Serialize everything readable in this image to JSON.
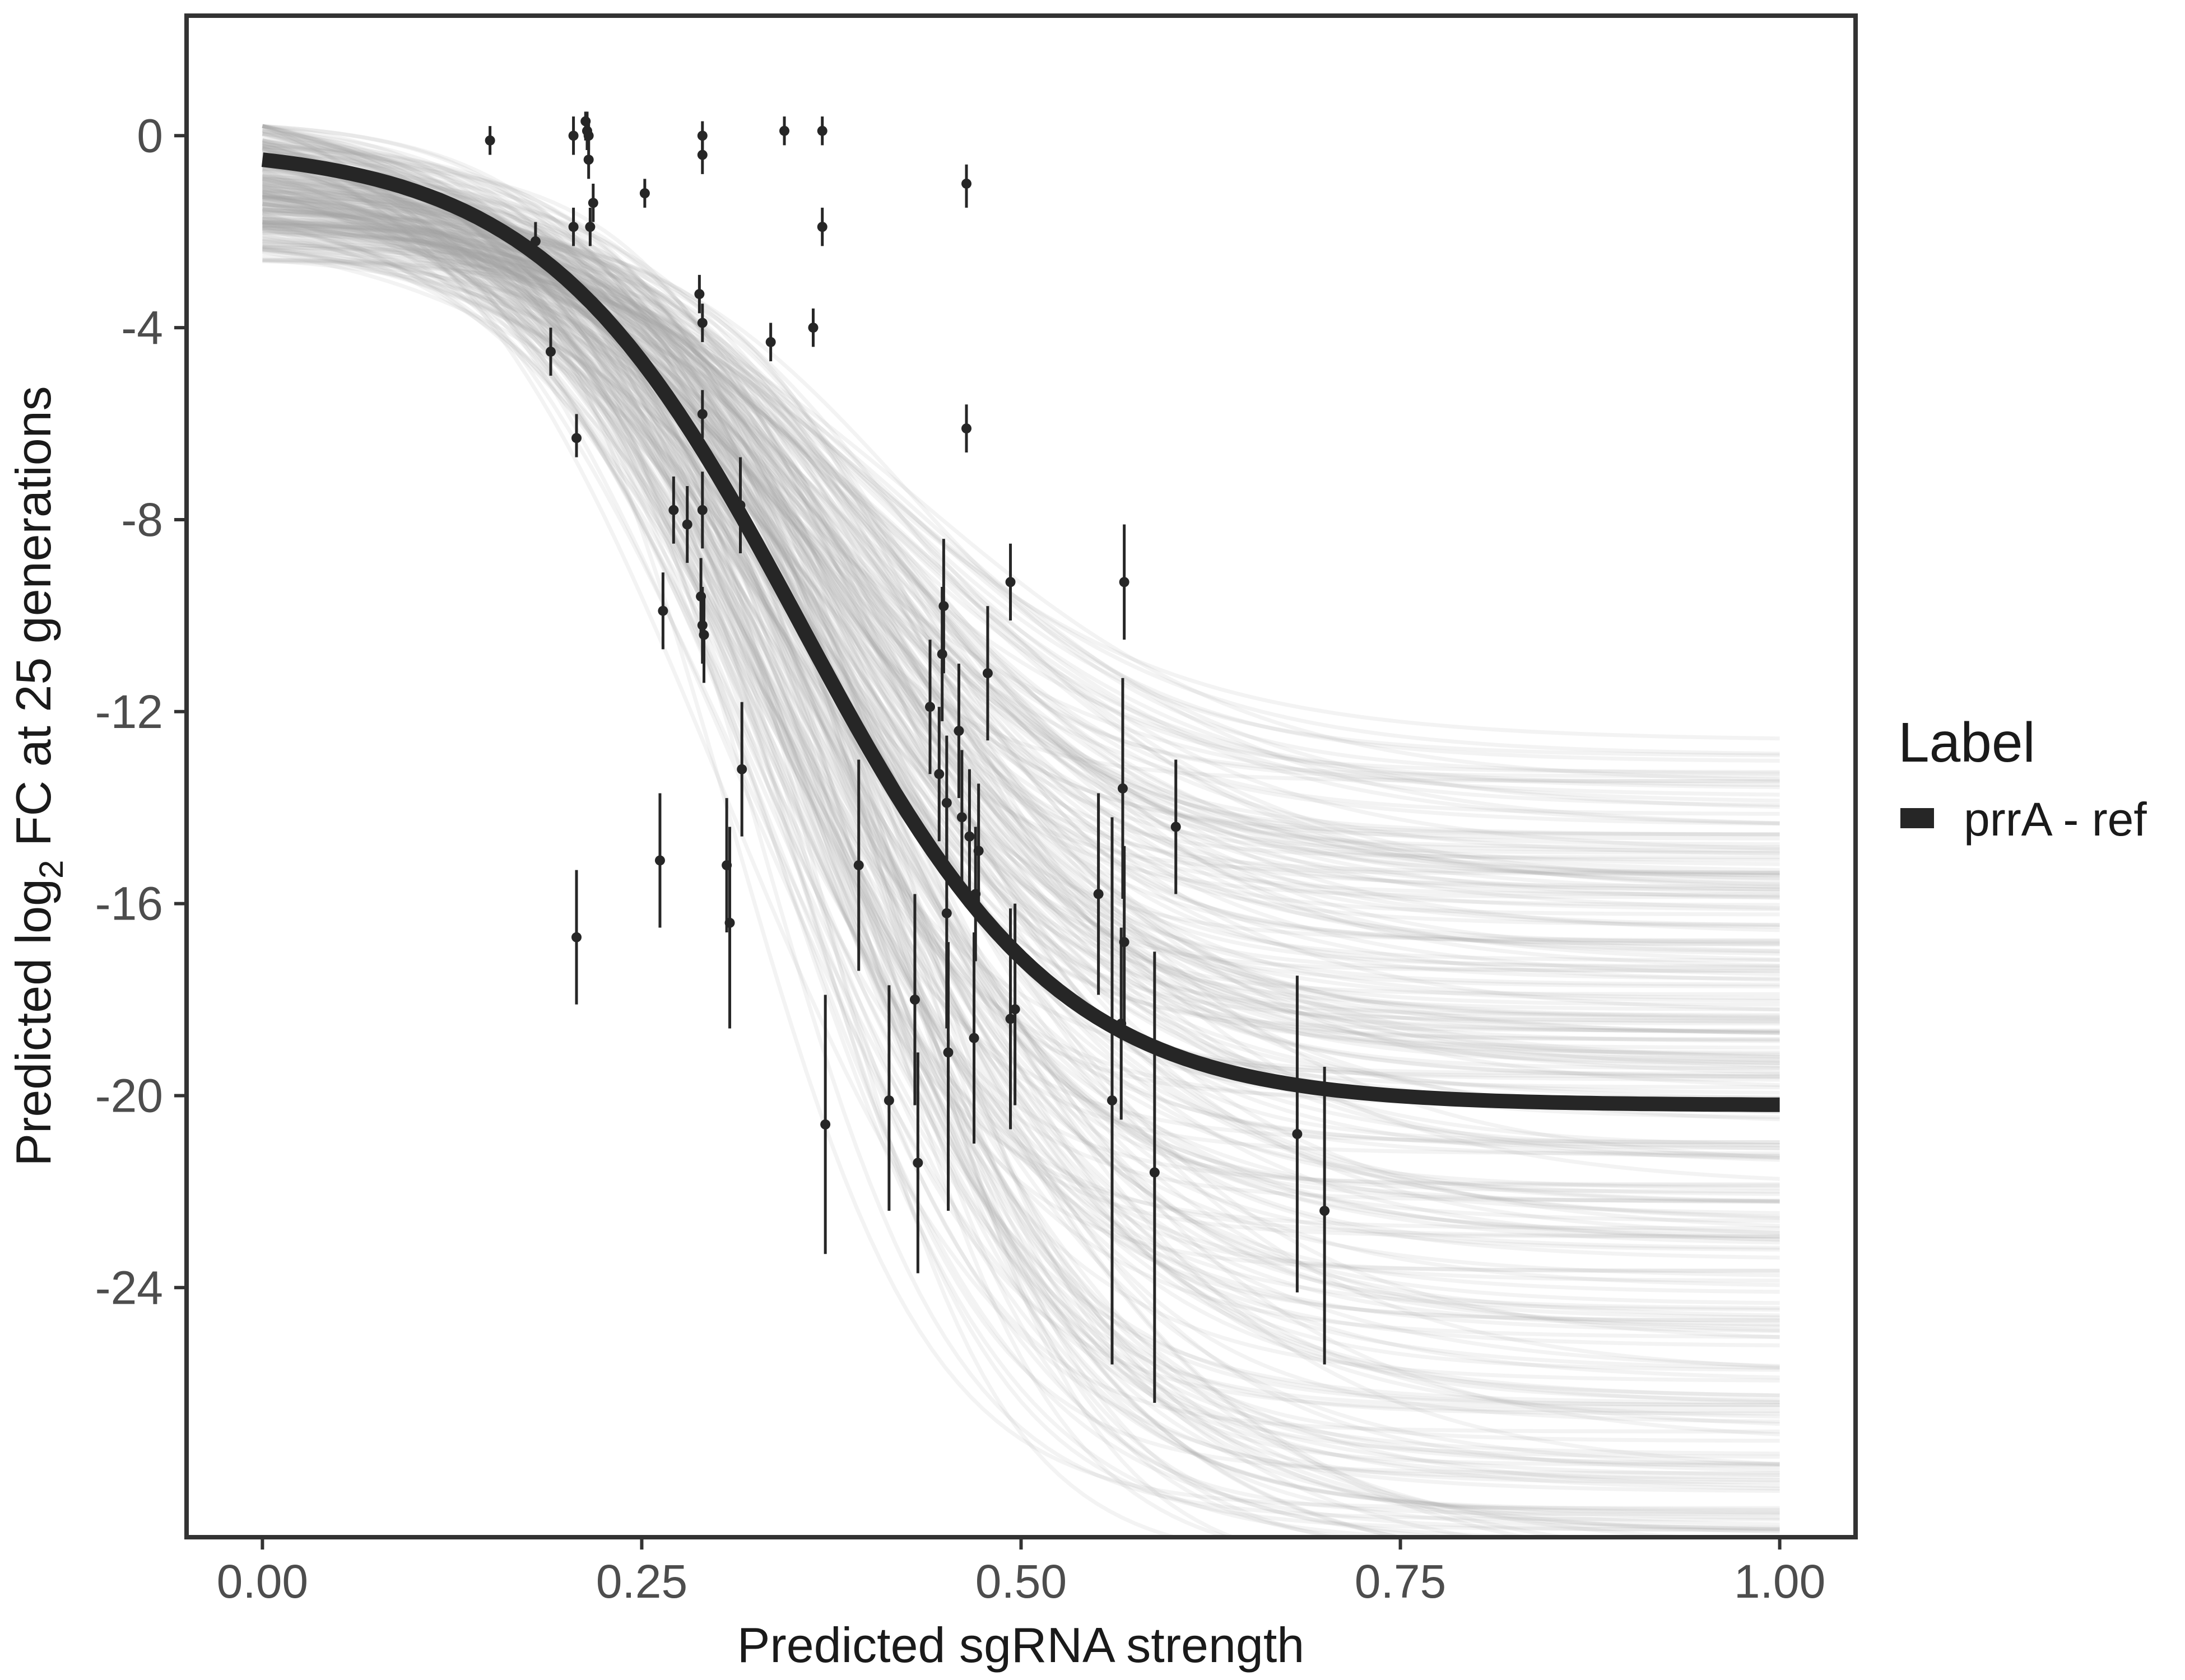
{
  "chart_data": {
    "type": "line",
    "title": "",
    "xlabel": "Predicted sgRNA strength",
    "ylabel_parts": [
      "Predicted  log",
      "2",
      " FC at 25 generations"
    ],
    "xlim": [
      -0.05,
      1.05
    ],
    "ylim": [
      -29.2,
      2.5
    ],
    "x_ticks": [
      0,
      0.25,
      0.5,
      0.75,
      1
    ],
    "x_tick_labels": [
      "0.00",
      "0.25",
      "0.50",
      "0.75",
      "1.00"
    ],
    "y_ticks": [
      0,
      -4,
      -8,
      -12,
      -16,
      -20,
      -24
    ],
    "y_tick_labels": [
      "0",
      "-4",
      "-8",
      "-12",
      "-16",
      "-20",
      "-24"
    ],
    "grid": false,
    "legend": {
      "title": "Label",
      "position": "right",
      "entries": [
        {
          "label": "prrA - ref",
          "color": "#262626"
        }
      ]
    },
    "fit_curve": {
      "name": "prrA - ref",
      "model": "logistic",
      "y_at_zero": -0.5,
      "asymptote": -20.2,
      "midpoint": 0.355,
      "scale": 0.085,
      "color": "#262626"
    },
    "posterior_band": {
      "description": "posterior draws of the logistic fit",
      "color": "#a6a6a6",
      "y_at_zero_range": [
        -2.8,
        0.2
      ],
      "asymptote_range": [
        -30.0,
        -12.5
      ],
      "midpoint_range": [
        0.3,
        0.45
      ],
      "scale_range": [
        0.06,
        0.12
      ]
    },
    "points": [
      {
        "x": 0.15,
        "y": -0.1,
        "lo": -0.4,
        "hi": 0.2
      },
      {
        "x": 0.18,
        "y": -2.2,
        "lo": -2.6,
        "hi": -1.8
      },
      {
        "x": 0.19,
        "y": -4.5,
        "lo": -5.0,
        "hi": -4.0
      },
      {
        "x": 0.205,
        "y": 0.0,
        "lo": -0.4,
        "hi": 0.4
      },
      {
        "x": 0.205,
        "y": -1.9,
        "lo": -2.3,
        "hi": -1.5
      },
      {
        "x": 0.207,
        "y": -6.3,
        "lo": -6.7,
        "hi": -5.8
      },
      {
        "x": 0.207,
        "y": -16.7,
        "lo": -18.1,
        "hi": -15.3
      },
      {
        "x": 0.213,
        "y": 0.3,
        "lo": -0.1,
        "hi": 0.5
      },
      {
        "x": 0.214,
        "y": 0.1,
        "lo": -0.3,
        "hi": 0.5
      },
      {
        "x": 0.215,
        "y": 0.0,
        "lo": -0.3,
        "hi": 0.3
      },
      {
        "x": 0.215,
        "y": -0.5,
        "lo": -0.9,
        "hi": -0.1
      },
      {
        "x": 0.216,
        "y": -1.9,
        "lo": -2.3,
        "hi": -1.5
      },
      {
        "x": 0.218,
        "y": -1.4,
        "lo": -1.8,
        "hi": -1.0
      },
      {
        "x": 0.252,
        "y": -1.2,
        "lo": -1.5,
        "hi": -0.9
      },
      {
        "x": 0.262,
        "y": -15.1,
        "lo": -16.5,
        "hi": -13.7
      },
      {
        "x": 0.264,
        "y": -9.9,
        "lo": -10.7,
        "hi": -9.1
      },
      {
        "x": 0.271,
        "y": -7.8,
        "lo": -8.5,
        "hi": -7.1
      },
      {
        "x": 0.28,
        "y": -8.1,
        "lo": -8.9,
        "hi": -7.3
      },
      {
        "x": 0.288,
        "y": -3.3,
        "lo": -3.7,
        "hi": -2.9
      },
      {
        "x": 0.29,
        "y": 0.0,
        "lo": -0.4,
        "hi": 0.3
      },
      {
        "x": 0.29,
        "y": -0.4,
        "lo": -0.8,
        "hi": 0.0
      },
      {
        "x": 0.29,
        "y": -3.9,
        "lo": -4.3,
        "hi": -3.5
      },
      {
        "x": 0.29,
        "y": -5.8,
        "lo": -6.3,
        "hi": -5.3
      },
      {
        "x": 0.29,
        "y": -7.8,
        "lo": -8.6,
        "hi": -7.0
      },
      {
        "x": 0.289,
        "y": -9.6,
        "lo": -10.4,
        "hi": -8.8
      },
      {
        "x": 0.29,
        "y": -10.2,
        "lo": -11.0,
        "hi": -9.4
      },
      {
        "x": 0.291,
        "y": -10.4,
        "lo": -11.4,
        "hi": -9.6
      },
      {
        "x": 0.306,
        "y": -15.2,
        "lo": -16.6,
        "hi": -13.8
      },
      {
        "x": 0.308,
        "y": -16.4,
        "lo": -18.6,
        "hi": -14.4
      },
      {
        "x": 0.315,
        "y": -7.7,
        "lo": -8.7,
        "hi": -6.7
      },
      {
        "x": 0.316,
        "y": -13.2,
        "lo": -14.6,
        "hi": -11.8
      },
      {
        "x": 0.335,
        "y": -4.3,
        "lo": -4.7,
        "hi": -3.9
      },
      {
        "x": 0.344,
        "y": 0.1,
        "lo": -0.2,
        "hi": 0.4
      },
      {
        "x": 0.363,
        "y": -4.0,
        "lo": -4.4,
        "hi": -3.6
      },
      {
        "x": 0.369,
        "y": -1.9,
        "lo": -2.3,
        "hi": -1.5
      },
      {
        "x": 0.369,
        "y": 0.1,
        "lo": -0.2,
        "hi": 0.4
      },
      {
        "x": 0.371,
        "y": -20.6,
        "lo": -23.3,
        "hi": -17.9
      },
      {
        "x": 0.393,
        "y": -15.2,
        "lo": -17.4,
        "hi": -13.0
      },
      {
        "x": 0.413,
        "y": -20.1,
        "lo": -22.4,
        "hi": -17.7
      },
      {
        "x": 0.43,
        "y": -18.0,
        "lo": -20.2,
        "hi": -15.8
      },
      {
        "x": 0.432,
        "y": -21.4,
        "lo": -23.7,
        "hi": -19.1
      },
      {
        "x": 0.44,
        "y": -11.9,
        "lo": -13.3,
        "hi": -10.5
      },
      {
        "x": 0.446,
        "y": -13.3,
        "lo": -14.7,
        "hi": -11.9
      },
      {
        "x": 0.448,
        "y": -10.8,
        "lo": -12.2,
        "hi": -9.4
      },
      {
        "x": 0.449,
        "y": -9.8,
        "lo": -11.2,
        "hi": -8.4
      },
      {
        "x": 0.451,
        "y": -13.9,
        "lo": -15.3,
        "hi": -12.5
      },
      {
        "x": 0.451,
        "y": -16.2,
        "lo": -18.6,
        "hi": -13.8
      },
      {
        "x": 0.452,
        "y": -19.1,
        "lo": -22.4,
        "hi": -16.8
      },
      {
        "x": 0.459,
        "y": -12.4,
        "lo": -13.8,
        "hi": -11.0
      },
      {
        "x": 0.461,
        "y": -14.2,
        "lo": -15.6,
        "hi": -12.8
      },
      {
        "x": 0.464,
        "y": -1.0,
        "lo": -1.5,
        "hi": -0.6
      },
      {
        "x": 0.464,
        "y": -6.1,
        "lo": -6.6,
        "hi": -5.6
      },
      {
        "x": 0.466,
        "y": -14.6,
        "lo": -16.0,
        "hi": -13.2
      },
      {
        "x": 0.469,
        "y": -18.8,
        "lo": -21.0,
        "hi": -16.6
      },
      {
        "x": 0.47,
        "y": -15.8,
        "lo": -17.2,
        "hi": -14.4
      },
      {
        "x": 0.472,
        "y": -14.9,
        "lo": -16.3,
        "hi": -13.5
      },
      {
        "x": 0.478,
        "y": -11.2,
        "lo": -12.6,
        "hi": -9.8
      },
      {
        "x": 0.493,
        "y": -9.3,
        "lo": -10.1,
        "hi": -8.5
      },
      {
        "x": 0.493,
        "y": -18.4,
        "lo": -20.7,
        "hi": -16.1
      },
      {
        "x": 0.496,
        "y": -18.2,
        "lo": -20.2,
        "hi": -16.0
      },
      {
        "x": 0.551,
        "y": -15.8,
        "lo": -17.9,
        "hi": -13.7
      },
      {
        "x": 0.56,
        "y": -20.1,
        "lo": -25.6,
        "hi": -14.2
      },
      {
        "x": 0.566,
        "y": -18.5,
        "lo": -20.5,
        "hi": -16.5
      },
      {
        "x": 0.567,
        "y": -13.6,
        "lo": -15.9,
        "hi": -11.3
      },
      {
        "x": 0.568,
        "y": -16.8,
        "lo": -18.8,
        "hi": -14.8
      },
      {
        "x": 0.568,
        "y": -9.3,
        "lo": -10.5,
        "hi": -8.1
      },
      {
        "x": 0.588,
        "y": -21.6,
        "lo": -26.4,
        "hi": -17.0
      },
      {
        "x": 0.602,
        "y": -14.4,
        "lo": -15.8,
        "hi": -13.0
      },
      {
        "x": 0.682,
        "y": -20.8,
        "lo": -24.1,
        "hi": -17.5
      },
      {
        "x": 0.7,
        "y": -22.4,
        "lo": -25.6,
        "hi": -19.4
      }
    ]
  }
}
